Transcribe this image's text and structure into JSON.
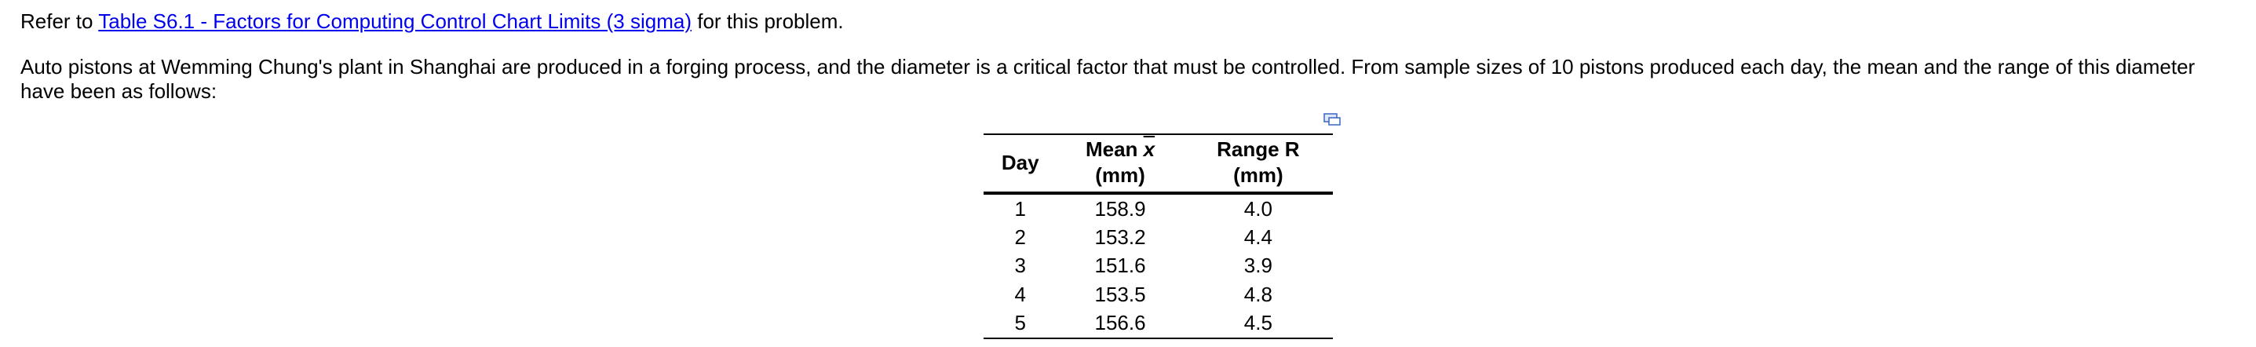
{
  "intro": {
    "before": "Refer to",
    "link": "Table S6.1 - Factors for Computing Control Chart Limits (3 sigma)",
    "after": "for this problem."
  },
  "problem": "Auto pistons at Wemming Chung's plant in Shanghai are produced in a forging process, and the diameter is a critical factor that must be controlled. From sample sizes of 10 pistons produced each day, the mean and the range of this diameter have been as follows:",
  "table": {
    "columns": [
      {
        "label": "Day"
      },
      {
        "label": "Mean",
        "symbol": "x",
        "unit": "(mm)"
      },
      {
        "label": "Range R",
        "unit": "(mm)"
      }
    ],
    "rows": [
      [
        "1",
        "158.9",
        "4.0"
      ],
      [
        "2",
        "153.2",
        "4.4"
      ],
      [
        "3",
        "151.6",
        "3.9"
      ],
      [
        "4",
        "153.5",
        "4.8"
      ],
      [
        "5",
        "156.6",
        "4.5"
      ]
    ]
  }
}
